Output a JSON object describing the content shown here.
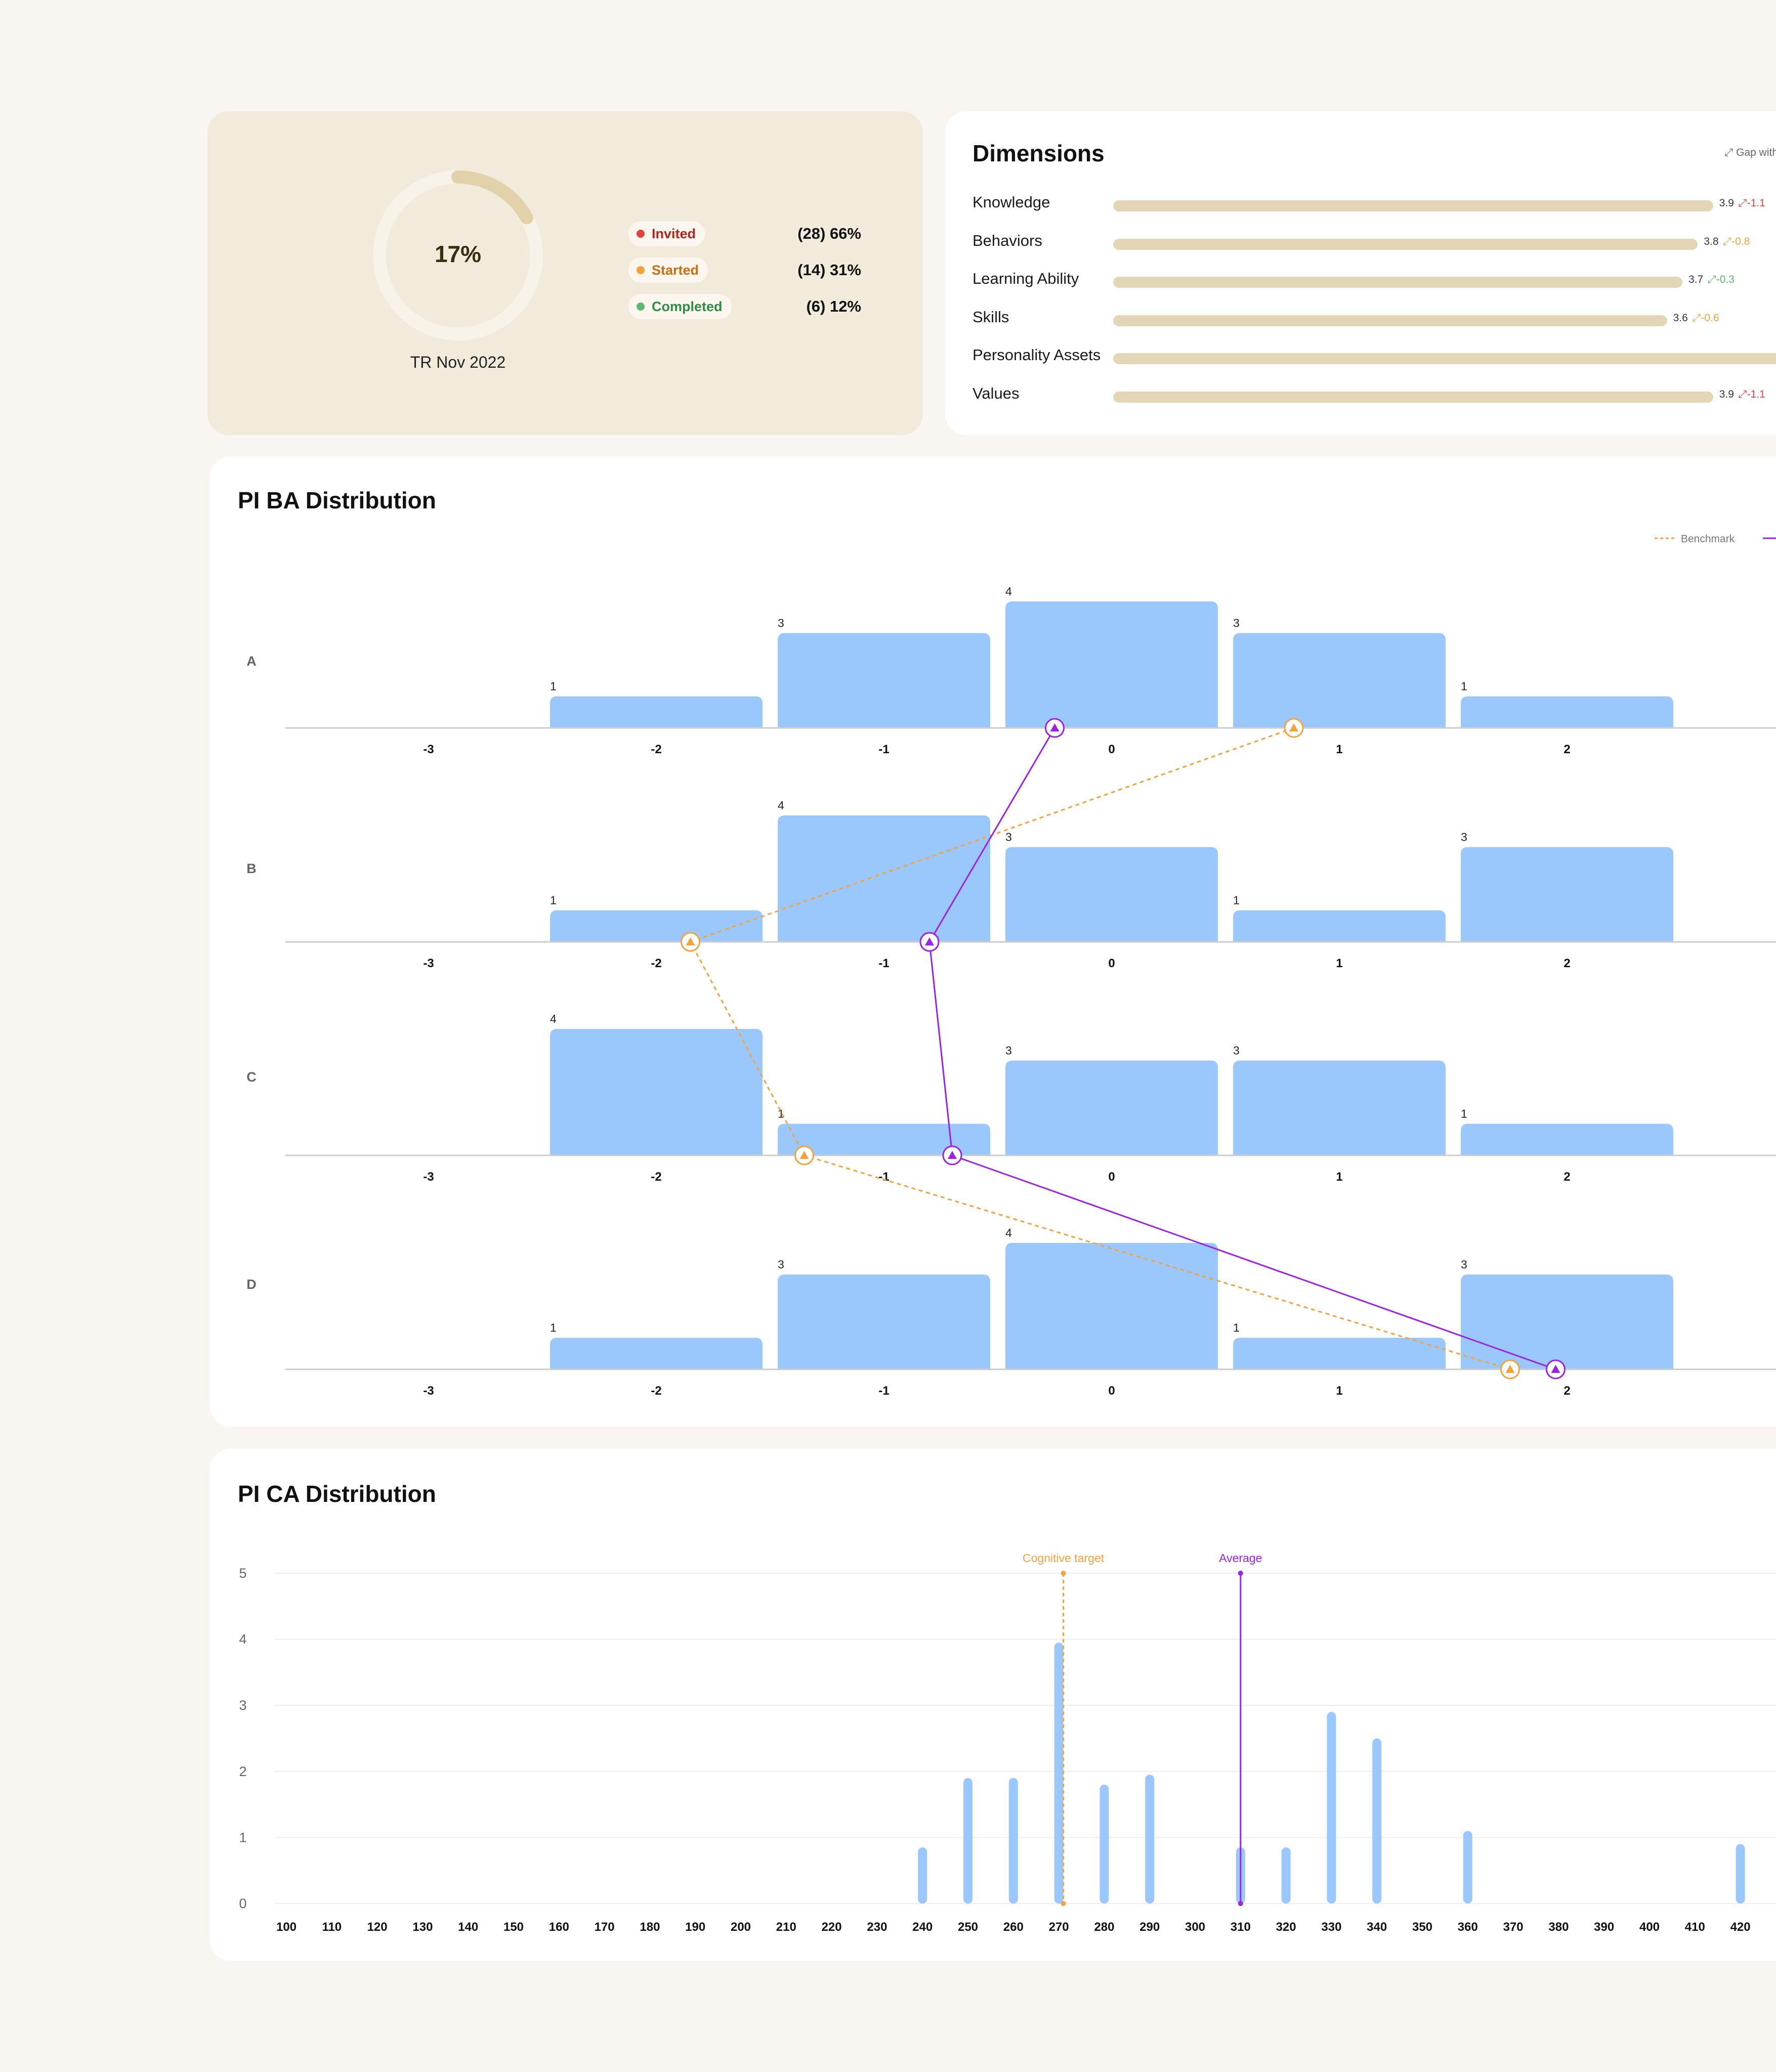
{
  "summary": {
    "percent": "17%",
    "progress": 0.17,
    "caption": "TR Nov 2022",
    "colors": {
      "track": "#f7f3e9",
      "fill": "#e1d2aa",
      "background": "#f1ebdb"
    },
    "statuses": [
      {
        "label": "Invited",
        "value": "(28) 66%",
        "color": "#e2423e",
        "text_color": "#b4231f"
      },
      {
        "label": "Started",
        "value": "(14) 31%",
        "color": "#f3a23c",
        "text_color": "#c76d12"
      },
      {
        "label": "Completed",
        "value": "(6) 12%",
        "color": "#5db870",
        "text_color": "#2f8c44"
      }
    ]
  },
  "dimensions": {
    "title": "Dimensions",
    "gap_label": "Gap with",
    "gap_icon": "expand-arrows-icon",
    "rows": [
      {
        "label": "Knowledge",
        "score": "3.9",
        "gap": "-1.1",
        "gap_color": "#e2423e",
        "level": 3.9
      },
      {
        "label": "Behaviors",
        "score": "3.8",
        "gap": "-0.8",
        "gap_color": "#f3a23c",
        "level": 3.8
      },
      {
        "label": "Learning Ability",
        "score": "3.7",
        "gap": "-0.3",
        "gap_color": "#5db870",
        "level": 3.7
      },
      {
        "label": "Skills",
        "score": "3.6",
        "gap": "-0.6",
        "gap_color": "#f3a23c",
        "level": 3.6
      },
      {
        "label": "Personality Assets",
        "score": "",
        "gap": "",
        "gap_color": "#f3a23c",
        "level": 5.0
      },
      {
        "label": "Values",
        "score": "3.9",
        "gap": "-1.1",
        "gap_color": "#e2423e",
        "level": 3.9
      }
    ]
  },
  "ba": {
    "title": "PI BA Distribution",
    "legend": [
      {
        "name": "Benchmark",
        "color": "#f3a23c",
        "style": "dashed"
      },
      {
        "name": "",
        "color": "#9b22e6",
        "style": "solid"
      }
    ]
  },
  "ca": {
    "title": "PI CA Distribution"
  },
  "chart_data": [
    {
      "type": "bar",
      "title": "PI BA Distribution",
      "categories": [
        "-3",
        "-2",
        "-1",
        "0",
        "1",
        "2"
      ],
      "ylim": [
        0,
        4
      ],
      "colors": {
        "bar": "#9bc8fc",
        "benchmark": "#f3a23c",
        "average": "#9b22e6",
        "baseline": "#cccccc"
      },
      "rows": [
        {
          "label": "A",
          "values": [
            0,
            1,
            3,
            4,
            3,
            1
          ]
        },
        {
          "label": "B",
          "values": [
            0,
            1,
            4,
            3,
            1,
            3
          ]
        },
        {
          "label": "C",
          "values": [
            0,
            4,
            1,
            3,
            3,
            1
          ]
        },
        {
          "label": "D",
          "values": [
            0,
            1,
            3,
            4,
            1,
            3
          ]
        }
      ],
      "series": [
        {
          "name": "Benchmark",
          "style": "dashed",
          "marker": "triangle",
          "points": {
            "A": 0.8,
            "B": -1.85,
            "C": -1.35,
            "D": 1.75
          }
        },
        {
          "name": "",
          "style": "solid",
          "marker": "triangle",
          "points": {
            "A": -0.25,
            "B": -0.8,
            "C": -0.7,
            "D": 1.95
          }
        }
      ]
    },
    {
      "type": "bar",
      "title": "PI CA Distribution",
      "x": [
        100,
        110,
        120,
        130,
        140,
        150,
        160,
        170,
        180,
        190,
        200,
        210,
        220,
        230,
        240,
        250,
        260,
        270,
        280,
        290,
        300,
        310,
        320,
        330,
        340,
        350,
        360,
        370,
        380,
        390,
        400,
        410,
        420
      ],
      "values": [
        0,
        0,
        0,
        0,
        0,
        0,
        0,
        0,
        0,
        0,
        0,
        0,
        0,
        0,
        0.85,
        1.9,
        1.9,
        3.95,
        1.8,
        1.95,
        0,
        0.85,
        0.85,
        2.9,
        2.5,
        0,
        1.1,
        0,
        0,
        0,
        0,
        0,
        0.9
      ],
      "yticks": [
        "0",
        "1",
        "2",
        "3",
        "4",
        "5"
      ],
      "ylim": [
        0,
        5
      ],
      "grid": true,
      "colors": {
        "bar": "#9bc8fc",
        "target": "#f3a23c",
        "average": "#9b22e6",
        "grid": "#eeeeee"
      },
      "reference_lines": [
        {
          "label": "Cognitive target",
          "x": 271,
          "color": "#f3a23c",
          "style": "dashed"
        },
        {
          "label": "Average",
          "x": 310,
          "color": "#9b22e6",
          "style": "solid"
        }
      ]
    }
  ]
}
